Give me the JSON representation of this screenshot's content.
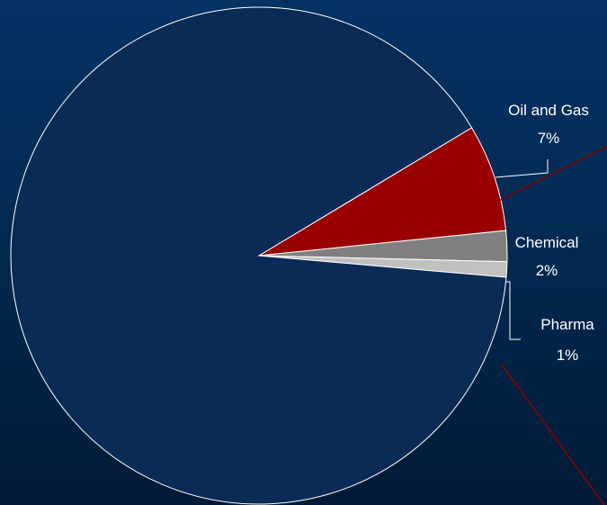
{
  "chart_data": {
    "type": "pie",
    "title": "",
    "slices": [
      {
        "label": "Oil and Gas",
        "value_label": "7%",
        "value": 7,
        "color": "#990000"
      },
      {
        "label": "Chemical",
        "value_label": "2%",
        "value": 2,
        "color": "#808080"
      },
      {
        "label": "Pharma",
        "value_label": "1%",
        "value": 1,
        "color": "#c0c0c0"
      },
      {
        "label": "",
        "value_label": "",
        "value": 90,
        "color": "#0a2b55"
      }
    ],
    "legend": "none",
    "colors": {
      "background_top": "#043263",
      "background_bottom": "#021a36",
      "slice_outline": "#ffffff",
      "accent_line": "#8b0000"
    }
  }
}
